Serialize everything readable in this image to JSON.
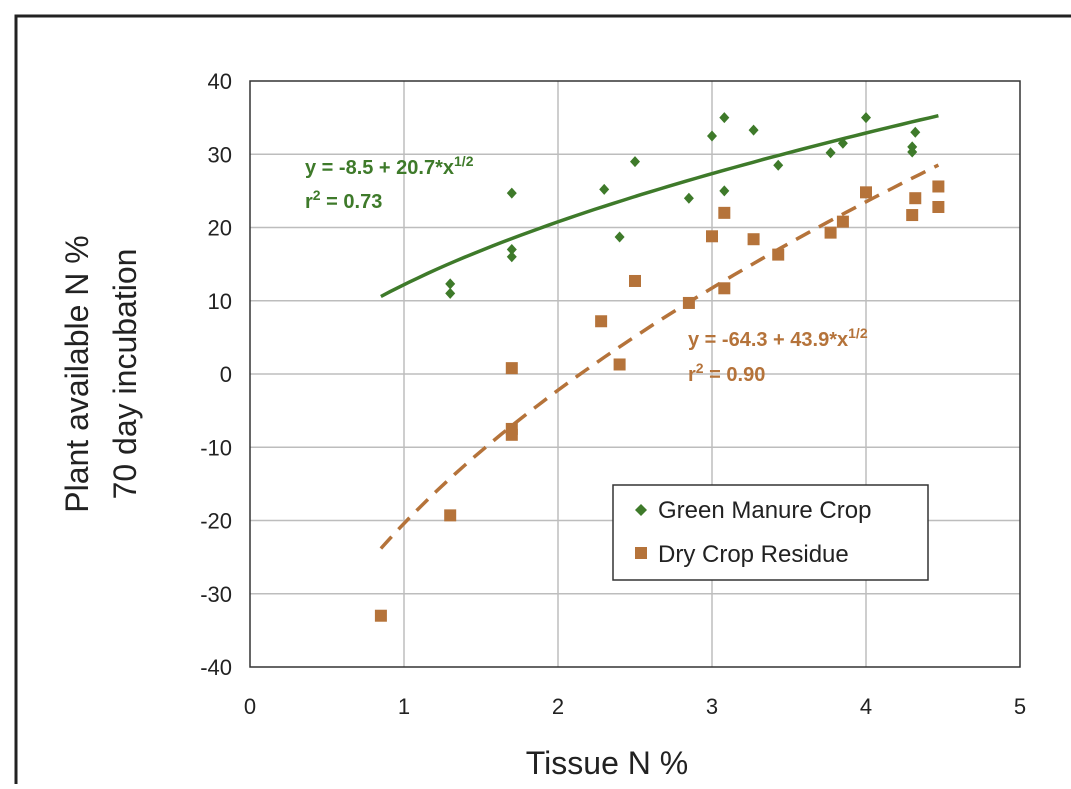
{
  "chart_data": {
    "type": "scatter",
    "title": "",
    "xlabel": "Tissue N %",
    "ylabel_line1": "Plant available N %",
    "ylabel_line2": "70 day incubation",
    "xlim": [
      0,
      5
    ],
    "ylim": [
      -40,
      40
    ],
    "x_ticks": [
      0,
      1,
      2,
      3,
      4,
      5
    ],
    "y_ticks": [
      -40,
      -30,
      -20,
      -10,
      0,
      10,
      20,
      30,
      40
    ],
    "grid": true,
    "legend_position": "lower-right",
    "series": [
      {
        "name": "Green Manure Crop",
        "marker": "diamond",
        "color": "#3e7a2a",
        "points": [
          {
            "x": 1.3,
            "y": 12.3
          },
          {
            "x": 1.3,
            "y": 11.0
          },
          {
            "x": 1.7,
            "y": 24.7
          },
          {
            "x": 1.7,
            "y": 17.0
          },
          {
            "x": 1.7,
            "y": 16.0
          },
          {
            "x": 2.3,
            "y": 25.2
          },
          {
            "x": 2.4,
            "y": 18.7
          },
          {
            "x": 2.5,
            "y": 29.0
          },
          {
            "x": 2.85,
            "y": 24.0
          },
          {
            "x": 3.0,
            "y": 32.5
          },
          {
            "x": 3.08,
            "y": 35.0
          },
          {
            "x": 3.08,
            "y": 25.0
          },
          {
            "x": 3.27,
            "y": 33.3
          },
          {
            "x": 3.43,
            "y": 28.5
          },
          {
            "x": 3.77,
            "y": 30.2
          },
          {
            "x": 3.85,
            "y": 31.5
          },
          {
            "x": 4.0,
            "y": 35.0
          },
          {
            "x": 4.3,
            "y": 31.0
          },
          {
            "x": 4.3,
            "y": 30.3
          },
          {
            "x": 4.32,
            "y": 33.0
          }
        ],
        "fit": {
          "equation": "y = -8.5 + 20.7*x",
          "exponent": "1/2",
          "r2_label": "r",
          "r2_exp": "2",
          "r2_value": " = 0.73",
          "a": -8.5,
          "b": 20.7,
          "x_range": [
            0.85,
            4.47
          ],
          "dash": false
        }
      },
      {
        "name": "Dry Crop Residue",
        "marker": "square",
        "color": "#b5733a",
        "points": [
          {
            "x": 0.85,
            "y": -33.0
          },
          {
            "x": 1.3,
            "y": -19.3
          },
          {
            "x": 1.7,
            "y": 0.8
          },
          {
            "x": 1.7,
            "y": -7.5
          },
          {
            "x": 1.7,
            "y": -8.3
          },
          {
            "x": 2.28,
            "y": 7.2
          },
          {
            "x": 2.4,
            "y": 1.3
          },
          {
            "x": 2.5,
            "y": 12.7
          },
          {
            "x": 2.85,
            "y": 9.7
          },
          {
            "x": 3.0,
            "y": 18.8
          },
          {
            "x": 3.08,
            "y": 22.0
          },
          {
            "x": 3.08,
            "y": 11.7
          },
          {
            "x": 3.27,
            "y": 18.4
          },
          {
            "x": 3.43,
            "y": 16.3
          },
          {
            "x": 3.77,
            "y": 19.3
          },
          {
            "x": 3.85,
            "y": 20.8
          },
          {
            "x": 4.0,
            "y": 24.8
          },
          {
            "x": 4.3,
            "y": 21.7
          },
          {
            "x": 4.32,
            "y": 24.0
          },
          {
            "x": 4.47,
            "y": 25.6
          },
          {
            "x": 4.47,
            "y": 22.8
          }
        ],
        "fit": {
          "equation": "y = -64.3 + 43.9*x",
          "exponent": "1/2",
          "r2_label": "r",
          "r2_exp": "2",
          "r2_value": " = 0.90",
          "a": -64.3,
          "b": 43.9,
          "x_range": [
            0.85,
            4.47
          ],
          "dash": true
        }
      }
    ]
  }
}
